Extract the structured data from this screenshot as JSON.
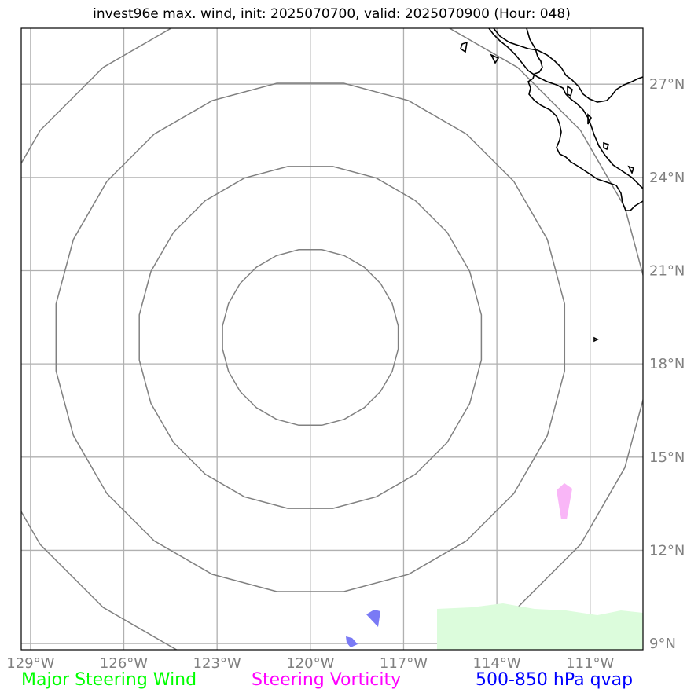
{
  "title": "invest96e max. wind, init: 2025070700, valid: 2025070900 (Hour: 048)",
  "map": {
    "lon_range": [
      -129.3,
      -109.3
    ],
    "lat_range": [
      8.8,
      28.8
    ],
    "lon_ticks": [
      {
        "lon": -129,
        "label": "129°W"
      },
      {
        "lon": -126,
        "label": "126°W"
      },
      {
        "lon": -123,
        "label": "123°W"
      },
      {
        "lon": -120,
        "label": "120°W"
      },
      {
        "lon": -117,
        "label": "117°W"
      },
      {
        "lon": -114,
        "label": "114°W"
      },
      {
        "lon": -111,
        "label": "111°W"
      }
    ],
    "lat_ticks": [
      {
        "lat": 9,
        "label": "9°N"
      },
      {
        "lat": 12,
        "label": "12°N"
      },
      {
        "lat": 15,
        "label": "15°N"
      },
      {
        "lat": 18,
        "label": "18°N"
      },
      {
        "lat": 21,
        "label": "21°N"
      },
      {
        "lat": 24,
        "label": "24°N"
      },
      {
        "lat": 27,
        "label": "27°N"
      }
    ],
    "storm_center": {
      "lon": -120.0,
      "lat": 18.85
    },
    "range_rings_deg": [
      2.85,
      5.55,
      8.25,
      10.95
    ],
    "colors": {
      "grid": "#b0b0b0",
      "rings": "#808080",
      "coastline": "#000000",
      "steering_wind": "#00ff00",
      "steering_wind_fill": "#dcfcdc",
      "vorticity": "#ff00ff",
      "vorticity_fill": "#f9b6f7",
      "qvap": "#0000ff",
      "qvap_fill": "#7a7af5"
    }
  },
  "legend": {
    "wind": "Major Steering Wind",
    "vorticity": "Steering Vorticity",
    "qvap": "500-850 hPa qvap"
  }
}
